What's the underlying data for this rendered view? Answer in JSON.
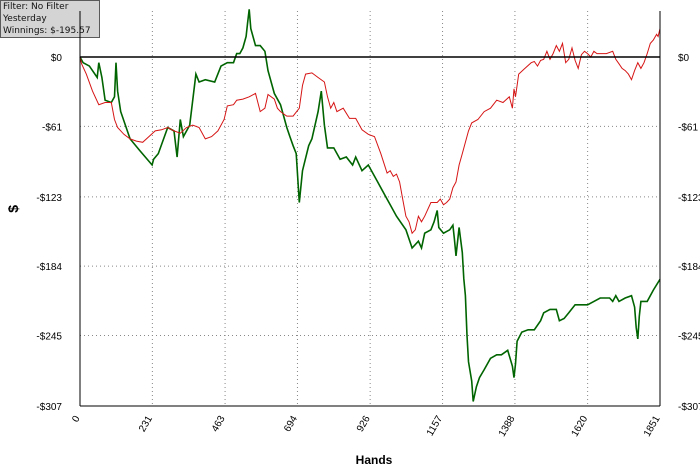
{
  "info": {
    "filter": "Filter: No Filter",
    "period": "Yesterday",
    "winnings": "Winnings: $-195.57"
  },
  "chart_data": {
    "type": "line",
    "xlabel": "Hands",
    "ylabel": "$",
    "xlim": [
      0,
      1851
    ],
    "ylim": [
      -307,
      60
    ],
    "x_ticks": [
      0,
      231,
      463,
      694,
      926,
      1157,
      1388,
      1620,
      1851
    ],
    "y_ticks": [
      0,
      -61,
      -123,
      -184,
      -245,
      -307
    ],
    "y_tick_labels": [
      "$0",
      "-$61",
      "-$123",
      "-$184",
      "-$245",
      "-$307"
    ],
    "grid": true,
    "zero_line": true,
    "colors": {
      "green_series": "#006400",
      "red_series": "#d61515",
      "axis": "#000000",
      "grid": "#888888"
    },
    "series": [
      {
        "color": "#006400",
        "points": [
          [
            0,
            0
          ],
          [
            10,
            -5
          ],
          [
            30,
            -8
          ],
          [
            55,
            -18
          ],
          [
            60,
            -5
          ],
          [
            70,
            -18
          ],
          [
            80,
            -38
          ],
          [
            100,
            -40
          ],
          [
            110,
            -35
          ],
          [
            115,
            -5
          ],
          [
            120,
            -30
          ],
          [
            130,
            -48
          ],
          [
            160,
            -72
          ],
          [
            190,
            -82
          ],
          [
            230,
            -95
          ],
          [
            235,
            -90
          ],
          [
            250,
            -85
          ],
          [
            280,
            -62
          ],
          [
            300,
            -65
          ],
          [
            310,
            -88
          ],
          [
            320,
            -55
          ],
          [
            330,
            -70
          ],
          [
            350,
            -60
          ],
          [
            370,
            -15
          ],
          [
            380,
            -22
          ],
          [
            400,
            -20
          ],
          [
            430,
            -22
          ],
          [
            450,
            -8
          ],
          [
            470,
            -5
          ],
          [
            490,
            -5
          ],
          [
            500,
            3
          ],
          [
            510,
            3
          ],
          [
            520,
            8
          ],
          [
            530,
            18
          ],
          [
            535,
            30
          ],
          [
            540,
            42
          ],
          [
            545,
            25
          ],
          [
            560,
            10
          ],
          [
            575,
            10
          ],
          [
            590,
            5
          ],
          [
            600,
            -12
          ],
          [
            620,
            -32
          ],
          [
            640,
            -42
          ],
          [
            660,
            -62
          ],
          [
            670,
            -70
          ],
          [
            680,
            -78
          ],
          [
            690,
            -85
          ],
          [
            700,
            -128
          ],
          [
            710,
            -100
          ],
          [
            730,
            -78
          ],
          [
            740,
            -72
          ],
          [
            760,
            -48
          ],
          [
            770,
            -30
          ],
          [
            780,
            -60
          ],
          [
            790,
            -80
          ],
          [
            810,
            -80
          ],
          [
            830,
            -90
          ],
          [
            850,
            -88
          ],
          [
            870,
            -95
          ],
          [
            880,
            -88
          ],
          [
            900,
            -100
          ],
          [
            920,
            -95
          ],
          [
            950,
            -110
          ],
          [
            970,
            -120
          ],
          [
            990,
            -130
          ],
          [
            1010,
            -140
          ],
          [
            1040,
            -152
          ],
          [
            1050,
            -160
          ],
          [
            1060,
            -168
          ],
          [
            1080,
            -162
          ],
          [
            1090,
            -168
          ],
          [
            1100,
            -155
          ],
          [
            1120,
            -152
          ],
          [
            1130,
            -145
          ],
          [
            1140,
            -135
          ],
          [
            1145,
            -150
          ],
          [
            1160,
            -155
          ],
          [
            1180,
            -152
          ],
          [
            1190,
            -148
          ],
          [
            1195,
            -160
          ],
          [
            1200,
            -175
          ],
          [
            1210,
            -150
          ],
          [
            1220,
            -172
          ],
          [
            1225,
            -195
          ],
          [
            1230,
            -210
          ],
          [
            1235,
            -245
          ],
          [
            1240,
            -268
          ],
          [
            1250,
            -285
          ],
          [
            1255,
            -303
          ],
          [
            1265,
            -290
          ],
          [
            1275,
            -282
          ],
          [
            1290,
            -275
          ],
          [
            1310,
            -265
          ],
          [
            1330,
            -262
          ],
          [
            1345,
            -262
          ],
          [
            1365,
            -258
          ],
          [
            1380,
            -272
          ],
          [
            1385,
            -282
          ],
          [
            1390,
            -270
          ],
          [
            1395,
            -250
          ],
          [
            1410,
            -242
          ],
          [
            1430,
            -240
          ],
          [
            1450,
            -240
          ],
          [
            1470,
            -232
          ],
          [
            1480,
            -225
          ],
          [
            1500,
            -222
          ],
          [
            1520,
            -222
          ],
          [
            1530,
            -232
          ],
          [
            1545,
            -230
          ],
          [
            1560,
            -225
          ],
          [
            1580,
            -218
          ],
          [
            1600,
            -218
          ],
          [
            1620,
            -218
          ],
          [
            1640,
            -215
          ],
          [
            1660,
            -212
          ],
          [
            1690,
            -212
          ],
          [
            1700,
            -215
          ],
          [
            1710,
            -210
          ],
          [
            1720,
            -215
          ],
          [
            1740,
            -212
          ],
          [
            1760,
            -210
          ],
          [
            1770,
            -220
          ],
          [
            1775,
            -238
          ],
          [
            1780,
            -248
          ],
          [
            1785,
            -228
          ],
          [
            1790,
            -215
          ],
          [
            1810,
            -215
          ],
          [
            1830,
            -205
          ],
          [
            1851,
            -195.57
          ]
        ]
      },
      {
        "color": "#d61515",
        "points": [
          [
            0,
            0
          ],
          [
            5,
            -6
          ],
          [
            20,
            -15
          ],
          [
            40,
            -30
          ],
          [
            60,
            -42
          ],
          [
            80,
            -40
          ],
          [
            100,
            -40
          ],
          [
            110,
            -55
          ],
          [
            120,
            -62
          ],
          [
            140,
            -68
          ],
          [
            160,
            -72
          ],
          [
            180,
            -74
          ],
          [
            200,
            -75
          ],
          [
            220,
            -70
          ],
          [
            240,
            -65
          ],
          [
            260,
            -64
          ],
          [
            280,
            -62
          ],
          [
            300,
            -65
          ],
          [
            320,
            -67
          ],
          [
            340,
            -62
          ],
          [
            360,
            -60
          ],
          [
            380,
            -62
          ],
          [
            400,
            -72
          ],
          [
            420,
            -70
          ],
          [
            440,
            -65
          ],
          [
            460,
            -55
          ],
          [
            470,
            -43
          ],
          [
            490,
            -42
          ],
          [
            500,
            -38
          ],
          [
            520,
            -37
          ],
          [
            540,
            -35
          ],
          [
            560,
            -32
          ],
          [
            575,
            -48
          ],
          [
            590,
            -45
          ],
          [
            600,
            -33
          ],
          [
            620,
            -37
          ],
          [
            630,
            -45
          ],
          [
            640,
            -48
          ],
          [
            660,
            -52
          ],
          [
            680,
            -52
          ],
          [
            700,
            -45
          ],
          [
            710,
            -25
          ],
          [
            720,
            -15
          ],
          [
            740,
            -14
          ],
          [
            760,
            -18
          ],
          [
            780,
            -22
          ],
          [
            790,
            -35
          ],
          [
            800,
            -45
          ],
          [
            810,
            -40
          ],
          [
            820,
            -48
          ],
          [
            840,
            -45
          ],
          [
            860,
            -54
          ],
          [
            880,
            -54
          ],
          [
            900,
            -64
          ],
          [
            920,
            -68
          ],
          [
            940,
            -70
          ],
          [
            960,
            -85
          ],
          [
            980,
            -102
          ],
          [
            990,
            -100
          ],
          [
            1000,
            -105
          ],
          [
            1010,
            -103
          ],
          [
            1020,
            -110
          ],
          [
            1030,
            -125
          ],
          [
            1040,
            -140
          ],
          [
            1050,
            -145
          ],
          [
            1060,
            -155
          ],
          [
            1070,
            -152
          ],
          [
            1080,
            -140
          ],
          [
            1090,
            -145
          ],
          [
            1100,
            -140
          ],
          [
            1120,
            -128
          ],
          [
            1140,
            -128
          ],
          [
            1150,
            -125
          ],
          [
            1160,
            -130
          ],
          [
            1170,
            -128
          ],
          [
            1180,
            -125
          ],
          [
            1190,
            -115
          ],
          [
            1200,
            -110
          ],
          [
            1210,
            -95
          ],
          [
            1220,
            -85
          ],
          [
            1230,
            -75
          ],
          [
            1240,
            -65
          ],
          [
            1250,
            -58
          ],
          [
            1270,
            -55
          ],
          [
            1290,
            -48
          ],
          [
            1310,
            -45
          ],
          [
            1330,
            -38
          ],
          [
            1350,
            -40
          ],
          [
            1370,
            -35
          ],
          [
            1380,
            -45
          ],
          [
            1385,
            -28
          ],
          [
            1390,
            -35
          ],
          [
            1400,
            -15
          ],
          [
            1420,
            -10
          ],
          [
            1440,
            -5
          ],
          [
            1450,
            -4
          ],
          [
            1460,
            -8
          ],
          [
            1470,
            -3
          ],
          [
            1480,
            -2
          ],
          [
            1490,
            5
          ],
          [
            1500,
            -2
          ],
          [
            1510,
            3
          ],
          [
            1520,
            10
          ],
          [
            1530,
            5
          ],
          [
            1540,
            12
          ],
          [
            1550,
            -5
          ],
          [
            1560,
            -2
          ],
          [
            1570,
            8
          ],
          [
            1580,
            -3
          ],
          [
            1590,
            -10
          ],
          [
            1600,
            2
          ],
          [
            1610,
            5
          ],
          [
            1620,
            3
          ],
          [
            1630,
            0
          ],
          [
            1640,
            5
          ],
          [
            1650,
            3
          ],
          [
            1660,
            3
          ],
          [
            1680,
            3
          ],
          [
            1700,
            5
          ],
          [
            1710,
            -2
          ],
          [
            1720,
            -6
          ],
          [
            1730,
            -10
          ],
          [
            1740,
            -12
          ],
          [
            1750,
            -15
          ],
          [
            1760,
            -20
          ],
          [
            1770,
            -12
          ],
          [
            1780,
            -5
          ],
          [
            1790,
            -10
          ],
          [
            1800,
            -5
          ],
          [
            1810,
            3
          ],
          [
            1820,
            12
          ],
          [
            1830,
            15
          ],
          [
            1840,
            20
          ],
          [
            1845,
            18
          ],
          [
            1851,
            25
          ]
        ]
      }
    ]
  }
}
